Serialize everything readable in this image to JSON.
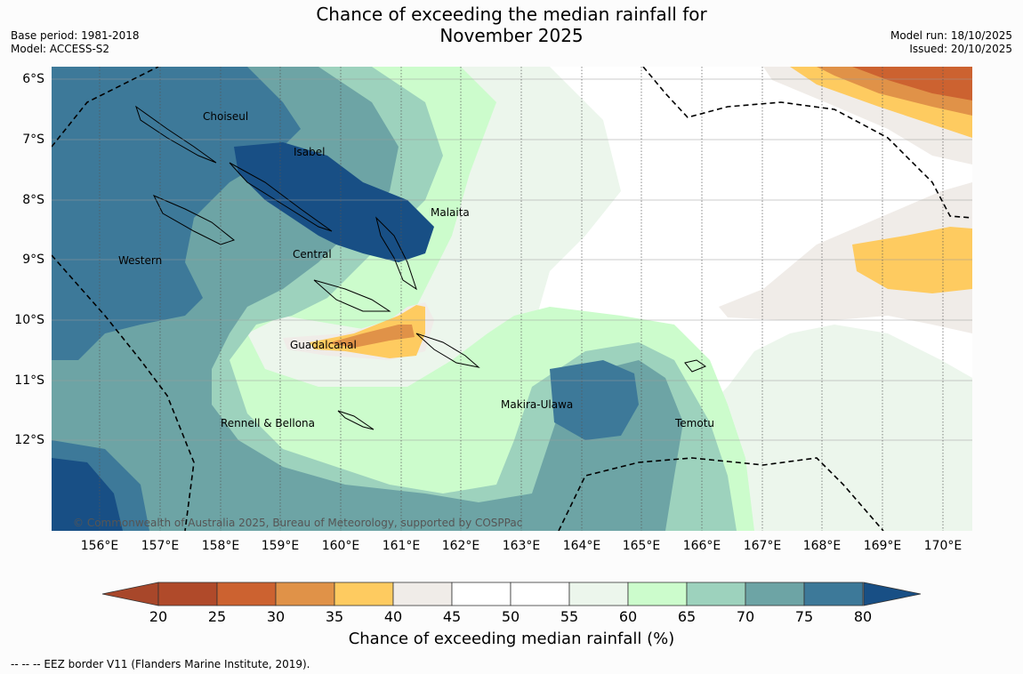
{
  "title": {
    "line1": "Chance of exceeding the median rainfall for",
    "line2": "November 2025"
  },
  "meta_left": {
    "base_period": "Base period: 1981-2018",
    "model": "Model: ACCESS-S2"
  },
  "meta_right": {
    "model_run": "Model run: 18/10/2025",
    "issued": "Issued: 20/10/2025"
  },
  "map": {
    "lat_labels": [
      "6°S",
      "7°S",
      "8°S",
      "9°S",
      "10°S",
      "11°S",
      "12°S"
    ],
    "lon_labels": [
      "156°E",
      "157°E",
      "158°E",
      "159°E",
      "160°E",
      "161°E",
      "162°E",
      "163°E",
      "164°E",
      "165°E",
      "166°E",
      "167°E",
      "168°E",
      "169°E",
      "170°E"
    ],
    "regions": [
      "Choiseul",
      "Isabel",
      "Malaita",
      "Western",
      "Central",
      "Guadalcanal",
      "Makira-Ulawa",
      "Rennell & Bellona",
      "Temotu"
    ],
    "copyright": "© Commonwealth of Australia 2025, Bureau of Meteorology, supported by COSPPac"
  },
  "colorbar": {
    "title": "Chance of exceeding median rainfall (%)",
    "ticks": [
      "20",
      "25",
      "30",
      "35",
      "40",
      "45",
      "50",
      "55",
      "60",
      "65",
      "70",
      "75",
      "80"
    ],
    "colors": [
      "#a8472a",
      "#b04a2a",
      "#cc6230",
      "#e09248",
      "#fecb60",
      "#f0ece8",
      "#ffffff",
      "#ffffff",
      "#ecf6ec",
      "#ccfccc",
      "#9dd2bd",
      "#6da4a5",
      "#3d7999",
      "#184f85"
    ]
  },
  "footer": {
    "eez": "--  --  -- EEZ border V11 (Flanders Marine Institute, 2019)."
  }
}
